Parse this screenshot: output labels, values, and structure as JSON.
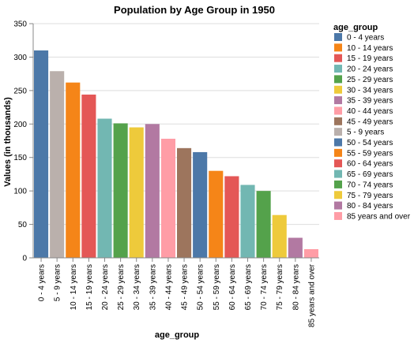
{
  "chart_data": {
    "type": "bar",
    "title": "Population by Age Group in 1950",
    "xlabel": "age_group",
    "ylabel": "Values (in thousands)",
    "ylim": [
      0,
      350
    ],
    "yticks": [
      0,
      50,
      100,
      150,
      200,
      250,
      300,
      350
    ],
    "grid": true,
    "legend": {
      "title": "age_group",
      "placement": "right",
      "entries": [
        {
          "label": "0 - 4 years",
          "color": "#4c78a8"
        },
        {
          "label": "10 - 14 years",
          "color": "#f58518"
        },
        {
          "label": "15 - 19 years",
          "color": "#e45756"
        },
        {
          "label": "20 - 24 years",
          "color": "#72b7b2"
        },
        {
          "label": "25 - 29 years",
          "color": "#54a24b"
        },
        {
          "label": "30 - 34 years",
          "color": "#eeca3b"
        },
        {
          "label": "35 - 39 years",
          "color": "#b279a2"
        },
        {
          "label": "40 - 44 years",
          "color": "#ff9da6"
        },
        {
          "label": "45 - 49 years",
          "color": "#9d755d"
        },
        {
          "label": "5 - 9 years",
          "color": "#bab0ac"
        },
        {
          "label": "50 - 54 years",
          "color": "#4c78a8"
        },
        {
          "label": "55 - 59 years",
          "color": "#f58518"
        },
        {
          "label": "60 - 64 years",
          "color": "#e45756"
        },
        {
          "label": "65 - 69 years",
          "color": "#72b7b2"
        },
        {
          "label": "70 - 74 years",
          "color": "#54a24b"
        },
        {
          "label": "75 - 79 years",
          "color": "#eeca3b"
        },
        {
          "label": "80 - 84 years",
          "color": "#b279a2"
        },
        {
          "label": "85 years and over",
          "color": "#ff9da6"
        }
      ]
    },
    "categories": [
      "0 - 4 years",
      "5 - 9 years",
      "10 - 14 years",
      "15 - 19 years",
      "20 - 24 years",
      "25 - 29 years",
      "30 - 34 years",
      "35 - 39 years",
      "40 - 44 years",
      "45 - 49 years",
      "50 - 54 years",
      "55 - 59 years",
      "60 - 64 years",
      "65 - 69 years",
      "70 - 74 years",
      "75 - 79 years",
      "80 - 84 years",
      "85 years and over"
    ],
    "values": [
      310,
      279,
      262,
      244,
      208,
      201,
      195,
      200,
      178,
      164,
      158,
      130,
      122,
      109,
      100,
      64,
      30,
      13
    ],
    "colors": [
      "#4c78a8",
      "#bab0ac",
      "#f58518",
      "#e45756",
      "#72b7b2",
      "#54a24b",
      "#eeca3b",
      "#b279a2",
      "#ff9da6",
      "#9d755d",
      "#4c78a8",
      "#f58518",
      "#e45756",
      "#72b7b2",
      "#54a24b",
      "#eeca3b",
      "#b279a2",
      "#ff9da6"
    ]
  }
}
